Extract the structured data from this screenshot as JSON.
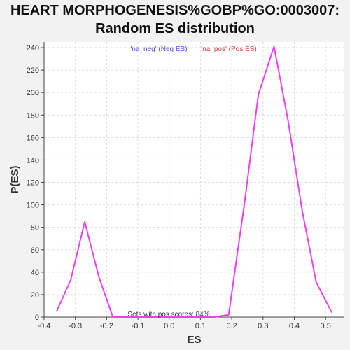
{
  "title_lines": [
    "HEART MORPHOGENESIS%GOBP%GO:0003007:",
    "Random ES distribution"
  ],
  "colors": {
    "neg": "#4f4fd6",
    "pos": "#e03a3a",
    "line": "#ee3ff0"
  },
  "chart_data": {
    "type": "line",
    "title": "HEART MORPHOGENESIS%GOBP%GO:0003007: Random ES distribution",
    "xlabel": "ES",
    "ylabel": "P(ES)",
    "xlim": [
      -0.4,
      0.56
    ],
    "ylim": [
      0,
      245
    ],
    "x_ticks": [
      -0.4,
      -0.3,
      -0.2,
      -0.1,
      0.0,
      0.1,
      0.2,
      0.3,
      0.4,
      0.5
    ],
    "x_tick_labels": [
      "-0.4",
      "-0.3",
      "-0.2",
      "-0.1",
      "0.0",
      "0.1",
      "0.2",
      "0.3",
      "0.4",
      "0.5"
    ],
    "y_ticks": [
      0,
      20,
      40,
      60,
      80,
      100,
      120,
      140,
      160,
      180,
      200,
      220,
      240
    ],
    "grid": true,
    "legend": [
      {
        "name": "'na_neg' (Neg ES)",
        "color": "#4f4fd6"
      },
      {
        "name": "'na_pos' (Pos ES)",
        "color": "#e03a3a"
      }
    ],
    "annotation": "Sets with pos scores: 84%",
    "series": [
      {
        "name": "'na_pos' (Pos ES)",
        "x": [
          -0.36,
          -0.315,
          -0.27,
          -0.225,
          -0.18,
          -0.135,
          0.1,
          0.145,
          0.19,
          0.24,
          0.285,
          0.335,
          0.38,
          0.425,
          0.47,
          0.52
        ],
        "y": [
          5,
          33,
          85,
          36,
          0,
          0,
          0,
          0,
          2,
          100,
          198,
          241,
          175,
          95,
          31,
          4
        ]
      }
    ]
  }
}
